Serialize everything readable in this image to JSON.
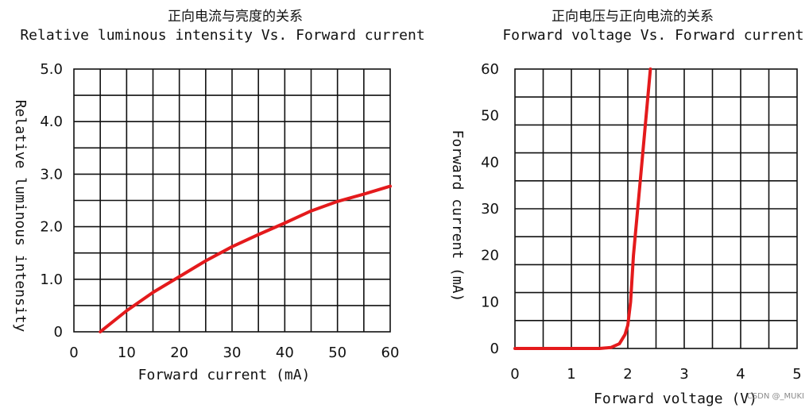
{
  "chart_data": [
    {
      "type": "line",
      "title_cn": "正向电流与亮度的关系",
      "title": "Relative luminous intensity Vs. Forward current",
      "xlabel": "Forward current (mA)",
      "ylabel": "Relative luminous intensity",
      "xlim": [
        0,
        60
      ],
      "ylim": [
        0,
        5.0
      ],
      "x_ticks": [
        "0",
        "10",
        "20",
        "30",
        "40",
        "50",
        "60"
      ],
      "y_ticks": [
        "0",
        "1.0",
        "2.0",
        "3.0",
        "4.0",
        "5.0"
      ],
      "grid": true,
      "series": [
        {
          "color": "#e41a1c",
          "x": [
            5,
            10,
            15,
            20,
            25,
            30,
            35,
            40,
            45,
            50,
            55,
            60
          ],
          "y": [
            0,
            0.4,
            0.75,
            1.05,
            1.35,
            1.62,
            1.85,
            2.07,
            2.3,
            2.48,
            2.62,
            2.77
          ]
        }
      ]
    },
    {
      "type": "line",
      "title_cn": "正向电压与正向电流的关系",
      "title": "Forward voltage Vs. Forward current",
      "xlabel": "Forward voltage (V)",
      "ylabel": "Forward current (mA)",
      "xlim": [
        0,
        5
      ],
      "ylim": [
        0,
        60
      ],
      "x_ticks": [
        "0",
        "1",
        "2",
        "3",
        "4",
        "5"
      ],
      "y_ticks": [
        "0",
        "10",
        "20",
        "30",
        "40",
        "50",
        "60"
      ],
      "grid": true,
      "series": [
        {
          "color": "#e41a1c",
          "x": [
            0,
            1.5,
            1.7,
            1.85,
            1.95,
            2.0,
            2.05,
            2.1,
            2.25,
            2.4
          ],
          "y": [
            0,
            0,
            0.2,
            1,
            3,
            5,
            10,
            20,
            40,
            60
          ]
        }
      ]
    }
  ],
  "watermark": "CSDN @_MUKI"
}
